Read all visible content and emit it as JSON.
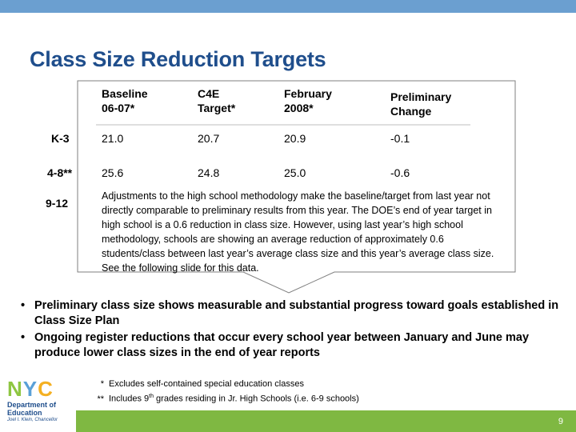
{
  "title": "Class Size Reduction Targets",
  "table": {
    "headers": [
      {
        "line1": "Baseline",
        "line2": "06-07*"
      },
      {
        "line1": "C4E",
        "line2": "Target*"
      },
      {
        "line1": "February",
        "line2": "2008*"
      },
      {
        "line1": "Preliminary",
        "line2": "Change"
      }
    ],
    "rows": [
      {
        "label": "K-3",
        "values": [
          "21.0",
          "20.7",
          "20.9",
          "-0.1"
        ]
      },
      {
        "label": "4-8**",
        "values": [
          "25.6",
          "24.8",
          "25.0",
          "-0.6"
        ]
      }
    ],
    "row_9_12_label": "9-12",
    "note": "Adjustments to the high school methodology make the baseline/target from last year not directly comparable to preliminary results from this year. The DOE’s end of year target in high school is a 0.6 reduction in class size.  However, using last year’s high school methodology, schools are showing an average reduction of approximately  0.6 students/class between last year’s average class size and this year’s average class size.  See the following slide for this data."
  },
  "bullets": [
    "Preliminary class size shows measurable and substantial progress toward goals established in Class Size Plan",
    "Ongoing register reductions that occur every school year between January and June may produce lower class sizes in the end of year reports"
  ],
  "bullet_symbol": "•",
  "footnotes": [
    {
      "symbol": "*",
      "text": "Excludes self-contained special education classes"
    },
    {
      "symbol": "**",
      "text_before": "Includes 9",
      "superscript": "th",
      "text_after": " grades residing in Jr. High Schools (i.e. 6-9 schools)"
    }
  ],
  "logo": {
    "letters": [
      "N",
      "Y",
      "C"
    ],
    "dept_line1": "Department of",
    "dept_line2": "Education",
    "subtitle": "Joel I. Klein, Chancellor"
  },
  "page_number": "9",
  "colors": {
    "title": "#1f4e8c",
    "top_bar": "#6b9fd0",
    "footer_bar": "#7fb842",
    "callout_border": "#7f7f7f"
  }
}
